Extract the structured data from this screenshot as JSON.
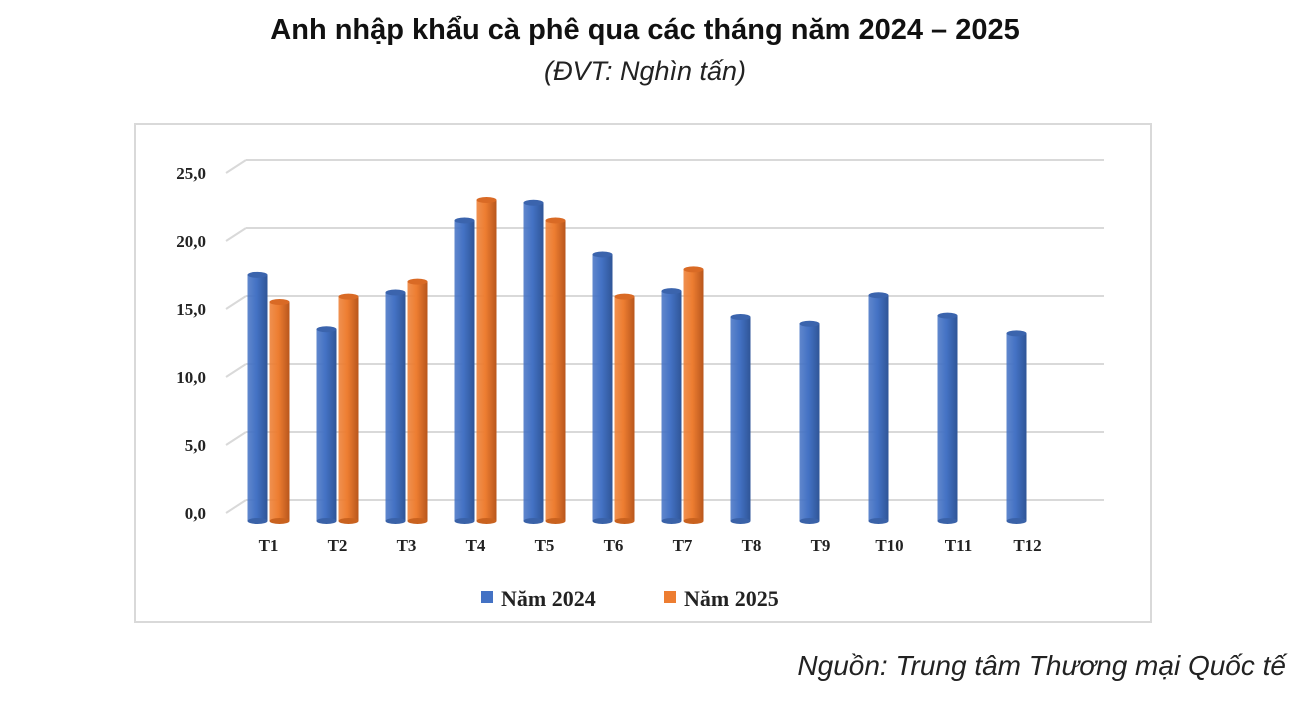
{
  "title": "Anh nhập khẩu cà phê qua các tháng năm 2024 – 2025",
  "unit": "(ĐVT: Nghìn tấn)",
  "source": "Nguồn: Trung tâm Thương mại Quốc tế",
  "chart_data": {
    "type": "bar",
    "title": "Anh nhập khẩu cà phê qua các tháng năm 2024 – 2025",
    "ylabel": "Nghìn tấn",
    "categories": [
      "T1",
      "T2",
      "T3",
      "T4",
      "T5",
      "T6",
      "T7",
      "T8",
      "T9",
      "T10",
      "T11",
      "T12"
    ],
    "series": [
      {
        "name": "Năm 2024",
        "color": "#4472c4",
        "values": [
          18.1,
          14.1,
          16.8,
          22.1,
          23.4,
          19.6,
          16.9,
          15.0,
          14.5,
          16.6,
          15.1,
          13.8
        ]
      },
      {
        "name": "Năm 2025",
        "color": "#ed7d31",
        "values": [
          16.1,
          16.5,
          17.6,
          23.6,
          22.1,
          16.5,
          18.5,
          null,
          null,
          null,
          null,
          null
        ]
      }
    ],
    "yticks": [
      "0,0",
      "5,0",
      "10,0",
      "15,0",
      "20,0",
      "25,0"
    ],
    "ylim": [
      0,
      25
    ],
    "grid": true,
    "legend": "bottom"
  }
}
